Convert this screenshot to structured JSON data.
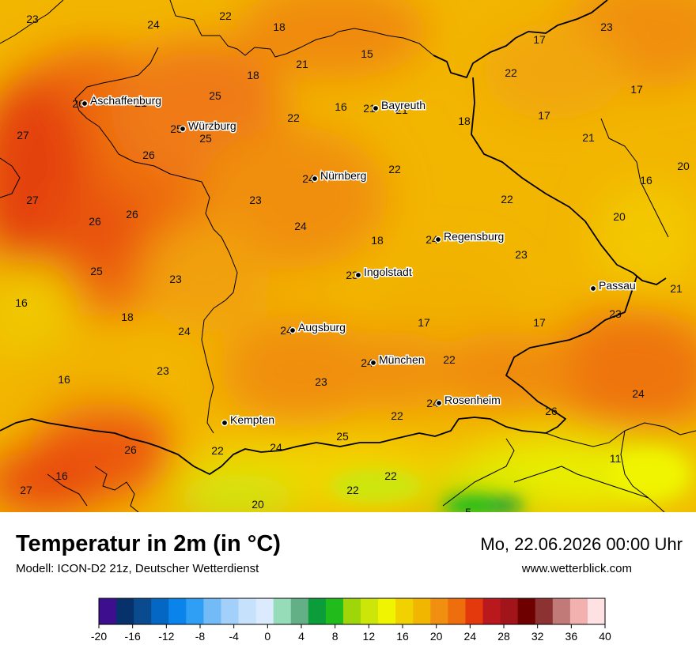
{
  "map": {
    "cities": [
      {
        "name": "Aschaffenburg",
        "value": "26"
      },
      {
        "name": "Würzburg",
        "value": "25"
      },
      {
        "name": "Bayreuth",
        "value": "21"
      },
      {
        "name": "Nürnberg",
        "value": "24"
      },
      {
        "name": "Regensburg",
        "value": "24"
      },
      {
        "name": "Ingolstadt",
        "value": "23"
      },
      {
        "name": "Passau",
        "value": ""
      },
      {
        "name": "Augsburg",
        "value": "24"
      },
      {
        "name": "München",
        "value": "24"
      },
      {
        "name": "Rosenheim",
        "value": "24"
      },
      {
        "name": "Kempten",
        "value": ""
      }
    ],
    "grid_values": [
      "23",
      "24",
      "22",
      "18",
      "21",
      "15",
      "17",
      "23",
      "22",
      "17",
      "18",
      "25",
      "21",
      "16",
      "22",
      "21",
      "18",
      "17",
      "21",
      "27",
      "25",
      "26",
      "20",
      "16",
      "27",
      "22",
      "26",
      "26",
      "23",
      "24",
      "18",
      "22",
      "20",
      "23",
      "25",
      "23",
      "21",
      "16",
      "18",
      "24",
      "17",
      "17",
      "23",
      "16",
      "23",
      "23",
      "22",
      "24",
      "22",
      "26",
      "22",
      "24",
      "25",
      "11",
      "16",
      "22",
      "26",
      "22",
      "27",
      "20",
      "5"
    ]
  },
  "footer": {
    "title": "Temperatur in 2m (in °C)",
    "model": "Modell: ICON-D2 21z, Deutscher Wetterdienst",
    "datetime": "Mo, 22.06.2026 00:00 Uhr",
    "website": "www.wetterblick.com"
  },
  "legend": {
    "colors": [
      "#3d0f8f",
      "#06316b",
      "#0a4a8f",
      "#0567c4",
      "#0a84ea",
      "#2f9ff5",
      "#72bbf7",
      "#a3d0fa",
      "#c6e1fb",
      "#dbeafd",
      "#96dcb9",
      "#63b087",
      "#0b9d3a",
      "#22bb1c",
      "#9fd60a",
      "#cde60a",
      "#f0f400",
      "#f2d100",
      "#f1b600",
      "#f08f10",
      "#ee6e0e",
      "#e4390c",
      "#b9181c",
      "#a1141a",
      "#6e0000",
      "#8c3232",
      "#c27a79",
      "#f2b1af",
      "#fde1e3"
    ],
    "tick_labels": [
      "-20",
      "-16",
      "-12",
      "-8",
      "-4",
      "0",
      "4",
      "8",
      "12",
      "16",
      "20",
      "24",
      "28",
      "32",
      "36",
      "40"
    ]
  }
}
